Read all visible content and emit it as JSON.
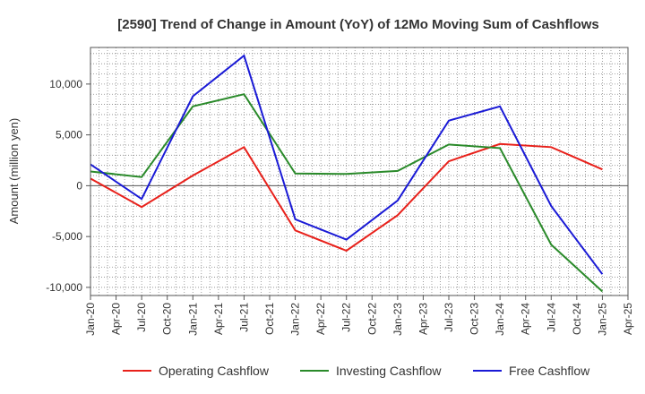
{
  "chart_data": {
    "type": "line",
    "title": "[2590]  Trend of Change in Amount (YoY) of 12Mo Moving Sum of Cashflows",
    "xlabel": "",
    "ylabel": "Amount (million yen)",
    "ylim": [
      -10800,
      13600
    ],
    "yticks": [
      10000,
      5000,
      0,
      -5000,
      -10000
    ],
    "ytick_labels": [
      "10,000",
      "5,000",
      "0",
      "-5,000",
      "-10,000"
    ],
    "xtick_labels": [
      "Jan-20",
      "Apr-20",
      "Jul-20",
      "Oct-20",
      "Jan-21",
      "Apr-21",
      "Jul-21",
      "Oct-21",
      "Jan-22",
      "Apr-22",
      "Jul-22",
      "Oct-22",
      "Jan-23",
      "Apr-23",
      "Jul-23",
      "Oct-23",
      "Jan-24",
      "Apr-24",
      "Jul-24",
      "Oct-24",
      "Jan-25",
      "Apr-25"
    ],
    "x": [
      "Jan-20",
      "Jul-20",
      "Jan-21",
      "Jul-21",
      "Jan-22",
      "Jul-22",
      "Jan-23",
      "Jul-23",
      "Jan-24",
      "Jul-24",
      "Jan-25"
    ],
    "series": [
      {
        "name": "Operating Cashflow",
        "color": "#e8211b",
        "values": [
          700,
          -2100,
          1000,
          3800,
          -4400,
          -6400,
          -2900,
          2400,
          4100,
          3800,
          1600
        ]
      },
      {
        "name": "Investing Cashflow",
        "color": "#2a8a2a",
        "values": [
          1400,
          850,
          7800,
          9000,
          1200,
          1150,
          1450,
          4050,
          3700,
          -5800,
          -10400
        ]
      },
      {
        "name": "Free Cashflow",
        "color": "#1a1ad6",
        "values": [
          2100,
          -1300,
          8800,
          12800,
          -3300,
          -5300,
          -1450,
          6400,
          7800,
          -2000,
          -8700
        ]
      }
    ],
    "grid": true,
    "legend_position": "bottom"
  }
}
